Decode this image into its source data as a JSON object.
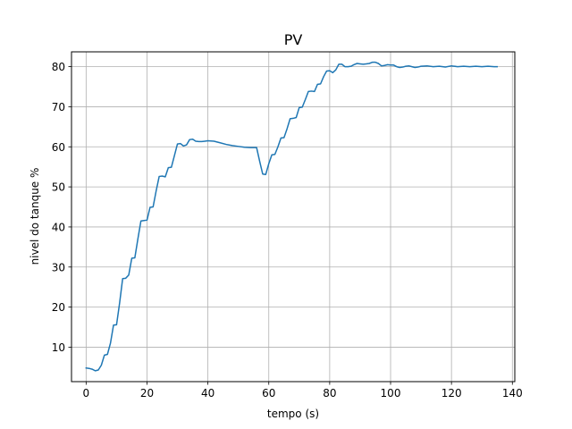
{
  "chart_data": {
    "type": "line",
    "title": "PV",
    "xlabel": "tempo (s)",
    "ylabel": "nivel do tanque %",
    "xlim": [
      -4.8,
      140.8
    ],
    "ylim": [
      1.4,
      83.7
    ],
    "grid": true,
    "xticks": [
      0,
      20,
      40,
      60,
      80,
      100,
      120,
      140
    ],
    "yticks": [
      10,
      20,
      30,
      40,
      50,
      60,
      70,
      80
    ],
    "series": [
      {
        "color": "#1f77b4",
        "x": [
          0,
          1,
          2,
          3,
          4,
          5,
          6,
          7,
          8,
          9,
          10,
          11,
          12,
          13,
          14,
          15,
          16,
          17,
          18,
          19,
          20,
          21,
          22,
          23,
          24,
          25,
          26,
          27,
          28,
          29,
          30,
          31,
          32,
          33,
          34,
          35,
          36,
          37,
          38,
          39,
          40,
          42,
          44,
          46,
          48,
          50,
          52,
          54,
          56,
          57,
          58,
          59,
          60,
          61,
          62,
          63,
          64,
          65,
          66,
          67,
          68,
          69,
          70,
          71,
          72,
          73,
          74,
          75,
          76,
          77,
          78,
          79,
          80,
          81,
          82,
          83,
          84,
          85,
          86,
          87,
          88,
          89,
          90,
          91,
          92,
          93,
          94,
          95,
          96,
          97,
          98,
          99,
          100,
          101,
          102,
          103,
          104,
          105,
          106,
          107,
          108,
          109,
          110,
          112,
          114,
          116,
          118,
          120,
          122,
          124,
          126,
          128,
          130,
          132,
          134,
          135
        ],
        "y": [
          4.8,
          4.7,
          4.5,
          4.1,
          4.3,
          5.5,
          8.0,
          8.2,
          11.0,
          15.5,
          15.6,
          21.0,
          27.1,
          27.2,
          28.0,
          32.2,
          32.3,
          37.0,
          41.5,
          41.6,
          41.7,
          44.9,
          45.0,
          49.0,
          52.6,
          52.7,
          52.5,
          54.8,
          54.9,
          57.8,
          60.7,
          60.8,
          60.2,
          60.5,
          61.8,
          61.9,
          61.4,
          61.3,
          61.3,
          61.4,
          61.5,
          61.4,
          61.0,
          60.6,
          60.3,
          60.1,
          59.9,
          59.8,
          59.8,
          56.4,
          53.2,
          53.1,
          55.8,
          58.0,
          58.1,
          60.0,
          62.2,
          62.3,
          64.5,
          67.0,
          67.1,
          67.3,
          69.8,
          69.9,
          71.8,
          73.8,
          73.9,
          73.8,
          75.6,
          75.7,
          77.5,
          78.9,
          79.0,
          78.5,
          79.2,
          80.6,
          80.6,
          80.0,
          80.0,
          80.1,
          80.5,
          80.8,
          80.7,
          80.6,
          80.7,
          80.8,
          81.1,
          81.1,
          80.8,
          80.2,
          80.3,
          80.5,
          80.4,
          80.4,
          80.0,
          79.8,
          79.9,
          80.1,
          80.2,
          80.0,
          79.8,
          79.9,
          80.1,
          80.2,
          80.0,
          80.1,
          79.9,
          80.2,
          80.0,
          80.1,
          80.0,
          80.1,
          80.0,
          80.1,
          80.0,
          80.0
        ]
      }
    ]
  }
}
